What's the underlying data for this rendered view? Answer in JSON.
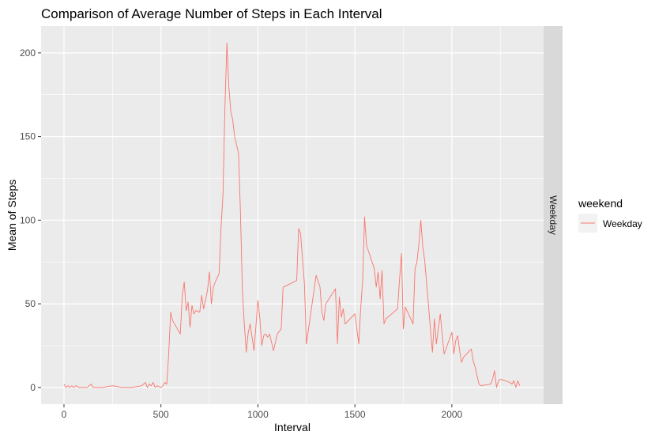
{
  "chart_data": {
    "type": "line",
    "title": "Comparison of Average Number of Steps in Each Interval",
    "xlabel": "Interval",
    "ylabel": "Mean of Steps",
    "xlim": [
      -118,
      2473
    ],
    "ylim": [
      -10,
      216
    ],
    "x_ticks": [
      0,
      500,
      1000,
      1500,
      2000
    ],
    "y_ticks": [
      0,
      50,
      100,
      150,
      200
    ],
    "grid": true,
    "facet_label": "Weekday",
    "legend": {
      "title": "weekend",
      "position": "right",
      "entries": [
        "Weekday"
      ]
    },
    "colors": {
      "series": "#F8766D",
      "panel": "#EBEBEB",
      "grid": "#FFFFFF",
      "strip": "#D9D9D9"
    },
    "series": [
      {
        "name": "Weekday",
        "x": [
          0,
          10,
          20,
          30,
          40,
          50,
          60,
          80,
          100,
          120,
          140,
          150,
          200,
          250,
          300,
          350,
          400,
          420,
          430,
          440,
          450,
          460,
          470,
          480,
          500,
          510,
          520,
          530,
          540,
          550,
          560,
          600,
          610,
          620,
          630,
          640,
          650,
          660,
          670,
          680,
          700,
          710,
          720,
          740,
          750,
          760,
          770,
          780,
          800,
          810,
          820,
          830,
          840,
          850,
          860,
          870,
          880,
          890,
          900,
          910,
          920,
          930,
          940,
          950,
          960,
          980,
          1000,
          1010,
          1020,
          1030,
          1040,
          1050,
          1060,
          1080,
          1100,
          1120,
          1130,
          1150,
          1200,
          1210,
          1220,
          1240,
          1250,
          1300,
          1320,
          1330,
          1340,
          1350,
          1400,
          1410,
          1420,
          1430,
          1440,
          1450,
          1500,
          1510,
          1520,
          1530,
          1540,
          1550,
          1560,
          1600,
          1610,
          1620,
          1630,
          1640,
          1650,
          1660,
          1700,
          1710,
          1720,
          1730,
          1740,
          1750,
          1760,
          1800,
          1810,
          1820,
          1830,
          1840,
          1850,
          1860,
          1900,
          1910,
          1920,
          1930,
          1940,
          1950,
          1960,
          2000,
          2010,
          2020,
          2030,
          2040,
          2050,
          2060,
          2100,
          2110,
          2120,
          2130,
          2140,
          2150,
          2200,
          2210,
          2220,
          2230,
          2240,
          2250,
          2300,
          2310,
          2320,
          2330,
          2340,
          2350
        ],
        "values": [
          2,
          0,
          1,
          0,
          1,
          0,
          1,
          0,
          0,
          0,
          2,
          0,
          0,
          1,
          0,
          0,
          1,
          3,
          0,
          2,
          1,
          3,
          0,
          1,
          0,
          1,
          3,
          2,
          20,
          45,
          40,
          32,
          55,
          63,
          46,
          51,
          36,
          49,
          44,
          46,
          45,
          55,
          47,
          58,
          69,
          50,
          60,
          63,
          68,
          96,
          115,
          168,
          206,
          180,
          165,
          160,
          150,
          145,
          140,
          105,
          58,
          38,
          21,
          33,
          38,
          22,
          52,
          41,
          25,
          31,
          32,
          30,
          32,
          22,
          32,
          35,
          60,
          61,
          64,
          95,
          92,
          62,
          26,
          67,
          60,
          45,
          40,
          50,
          59,
          26,
          54,
          42,
          47,
          38,
          44,
          35,
          26,
          47,
          64,
          102,
          85,
          71,
          60,
          69,
          53,
          70,
          38,
          41,
          45,
          46,
          47,
          64,
          80,
          35,
          48,
          38,
          71,
          75,
          86,
          100,
          84,
          76,
          21,
          41,
          26,
          35,
          44,
          32,
          20,
          33,
          20,
          28,
          31,
          22,
          15,
          18,
          23,
          16,
          12,
          7,
          2,
          1,
          2,
          5,
          10,
          0,
          4,
          5,
          3,
          2,
          4,
          0,
          4,
          1
        ]
      }
    ]
  }
}
